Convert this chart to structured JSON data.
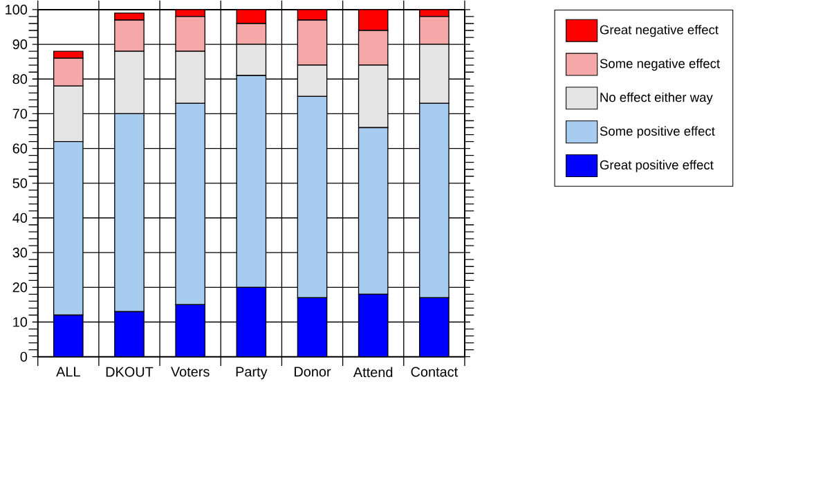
{
  "chart_data": {
    "type": "bar",
    "stacked": true,
    "categories": [
      "ALL",
      "DKOUT",
      "Voters",
      "Party",
      "Donor",
      "Attend",
      "Contact"
    ],
    "series": [
      {
        "name": "Great positive effect",
        "color": "#0000ff",
        "values": [
          12,
          13,
          15,
          20,
          17,
          18,
          17
        ]
      },
      {
        "name": "Some positive effect",
        "color": "#a8ccf0",
        "values": [
          50,
          57,
          58,
          61,
          58,
          48,
          56
        ]
      },
      {
        "name": "No effect either way",
        "color": "#e4e4e4",
        "values": [
          16,
          18,
          15,
          9,
          9,
          18,
          17
        ]
      },
      {
        "name": "Some negative effect",
        "color": "#f4a8a8",
        "values": [
          8,
          9,
          10,
          6,
          13,
          10,
          8
        ]
      },
      {
        "name": "Great negative effect",
        "color": "#ff0000",
        "values": [
          2,
          2,
          2,
          4,
          3,
          6,
          2
        ]
      }
    ],
    "ylim": [
      0,
      100
    ],
    "yticks": [
      0,
      10,
      20,
      30,
      40,
      50,
      60,
      70,
      80,
      90,
      100
    ],
    "grid": true,
    "legend": "top right"
  }
}
